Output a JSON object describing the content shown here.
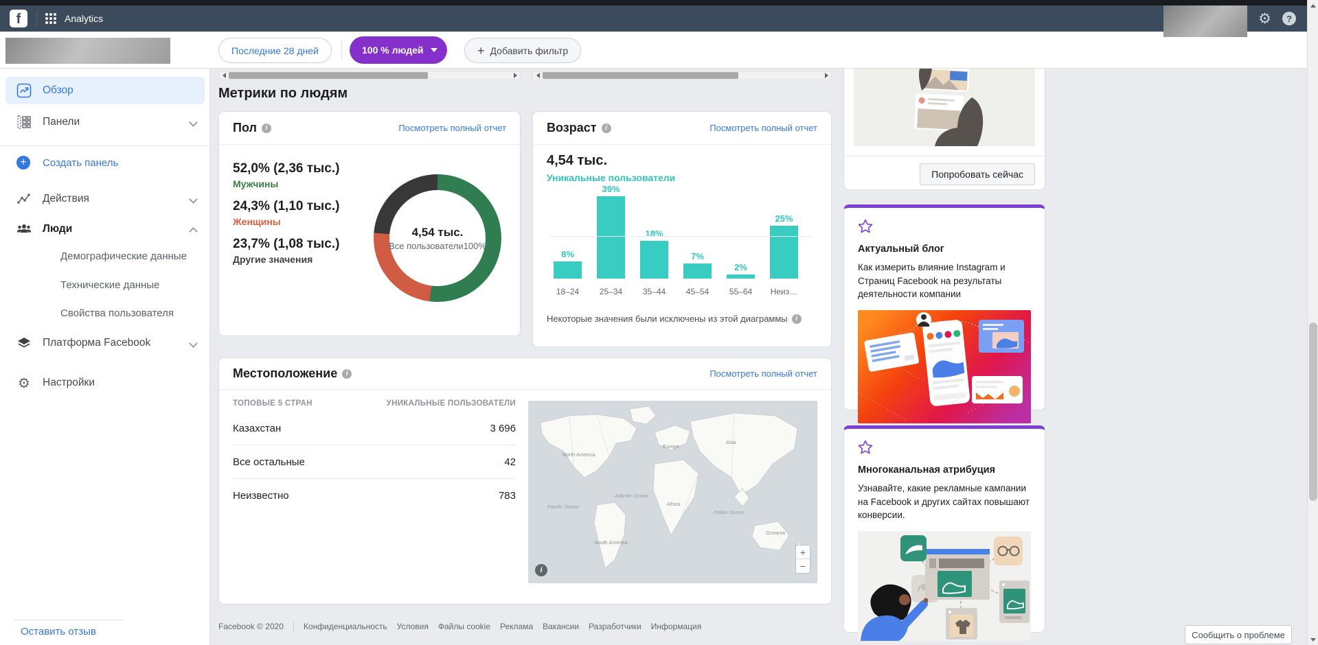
{
  "topbar": {
    "app_name": "Analytics",
    "help_glyph": "?",
    "gear_glyph": "⚙"
  },
  "toolbar": {
    "date_range": "Последние 28 дней",
    "people_filter": "100 % людей",
    "add_filter": "Добавить фильтр",
    "plus_glyph": "+"
  },
  "sidebar": {
    "items": [
      {
        "label": "Обзор"
      },
      {
        "label": "Панели"
      },
      {
        "label": "Создать панель"
      },
      {
        "label": "Действия"
      },
      {
        "label": "Люди"
      },
      {
        "label": "Демографические данные"
      },
      {
        "label": "Технические данные"
      },
      {
        "label": "Свойства пользователя"
      },
      {
        "label": "Платформа Facebook"
      },
      {
        "label": "Настройки"
      }
    ],
    "feedback_link": "Оставить отзыв"
  },
  "main": {
    "section_title": "Метрики по людям",
    "view_full_report": "Посмотреть полный отчет",
    "gender_card": {
      "title": "Пол"
    },
    "age_card": {
      "title": "Возраст"
    },
    "location_card": {
      "title": "Местоположение",
      "map_labels": [
        "Pacific Ocean",
        "North America",
        "Atlantic Ocean",
        "South America",
        "Europe",
        "Africa",
        "Asia",
        "Indian Ocean",
        "Oceania"
      ],
      "zoom_in": "+",
      "zoom_out": "−",
      "info_glyph": "i"
    }
  },
  "chart_data": [
    {
      "type": "pie",
      "title": "Пол",
      "center_value": "4,54 тыс.",
      "center_label": "Все пользователи",
      "center_pct": "100%",
      "segments": [
        {
          "label": "Мужчины",
          "pct": 52.0,
          "value": "2,36 тыс.",
          "display": "52,0% (2,36 тыс.)",
          "color": "#2f7d50",
          "label_color": "#3a7d44"
        },
        {
          "label": "Женщины",
          "pct": 24.3,
          "value": "1,10 тыс.",
          "display": "24,3% (1,10 тыс.)",
          "color": "#d15c44",
          "label_color": "#d4603f"
        },
        {
          "label": "Другие значения",
          "pct": 23.7,
          "value": "1,08 тыс.",
          "display": "23,7% (1,08 тыс.)",
          "color": "#383838",
          "label_color": "#3c4043"
        }
      ]
    },
    {
      "type": "bar",
      "title": "Возраст",
      "total": "4,54 тыс.",
      "total_label": "Уникальные пользователи",
      "categories": [
        "18–24",
        "25–34",
        "35–44",
        "45–54",
        "55–64",
        "Неиз…"
      ],
      "values": [
        8,
        39,
        18,
        7,
        2,
        25
      ],
      "unit": "%",
      "ylim": [
        0,
        40
      ],
      "bar_color": "#38ccc2",
      "label_color": "#2fc7bd",
      "total_label_color": "#33c3ba",
      "footnote": "Некоторые значения были исключены из этой диаграммы"
    },
    {
      "type": "table",
      "title": "Местоположение",
      "columns": [
        "ТОПОВЫЕ 5 СТРАН",
        "УНИКАЛЬНЫЕ ПОЛЬЗОВАТЕЛИ"
      ],
      "rows": [
        [
          "Казахстан",
          "3 696"
        ],
        [
          "Все остальные",
          "42"
        ],
        [
          "Неизвестно",
          "783"
        ]
      ]
    }
  ],
  "right_rail": {
    "try_now_button": "Попробовать сейчас",
    "cards": [
      {
        "title": "Актуальный блог",
        "description": "Как измерить влияние Instagram и Страниц Facebook на результаты деятельности компании"
      },
      {
        "title": "Многоканальная атрибуция",
        "description": "Узнавайте, какие рекламные кампании на Facebook и других сайтах повышают конверсии."
      }
    ],
    "report_problem_button": "Сообщить о проблеме"
  },
  "footer": {
    "copyright": "Facebook © 2020",
    "links": [
      "Конфиденциальность",
      "Условия",
      "Файлы cookie",
      "Реклама",
      "Вакансии",
      "Разработчики",
      "Информация"
    ]
  }
}
